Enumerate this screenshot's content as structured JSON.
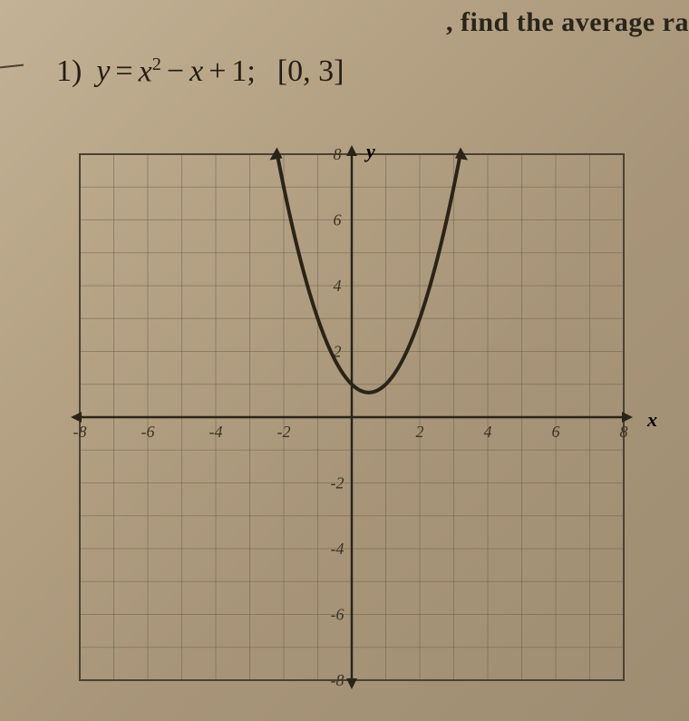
{
  "header_fragment": ", find the average ra",
  "problem": {
    "number": "1)",
    "equation_lhs": "y",
    "equation_eq": "=",
    "equation_term1_var": "x",
    "equation_term1_exp": "2",
    "equation_minus": "−",
    "equation_term2": "x",
    "equation_plus": "+",
    "equation_const": "1;",
    "interval": "[0, 3]"
  },
  "chart": {
    "type": "line",
    "background_color": "#b5a385",
    "grid_color": "#6d6450",
    "axis_color": "#2a2418",
    "curve_color": "#2a2418",
    "curve_width": 4,
    "xlim": [
      -8,
      8
    ],
    "ylim": [
      -8,
      8
    ],
    "xtick_step": 2,
    "ytick_step": 2,
    "x_tick_labels": [
      -8,
      -6,
      -4,
      -2,
      2,
      4,
      6,
      8
    ],
    "y_tick_labels": [
      -8,
      -6,
      -4,
      -2,
      2,
      4,
      6,
      8
    ],
    "y_axis_label": "y",
    "x_axis_label": "x",
    "curve_points_x": [
      -2.2,
      -2,
      -1.5,
      -1,
      -0.5,
      0,
      0.5,
      1,
      1.5,
      2,
      2.5,
      3,
      3.2
    ],
    "curve_points_y": [
      8.04,
      7,
      4.75,
      3,
      1.75,
      1,
      0.75,
      1,
      1.75,
      3,
      4.75,
      7,
      8.04
    ],
    "arrow_size": 10
  }
}
